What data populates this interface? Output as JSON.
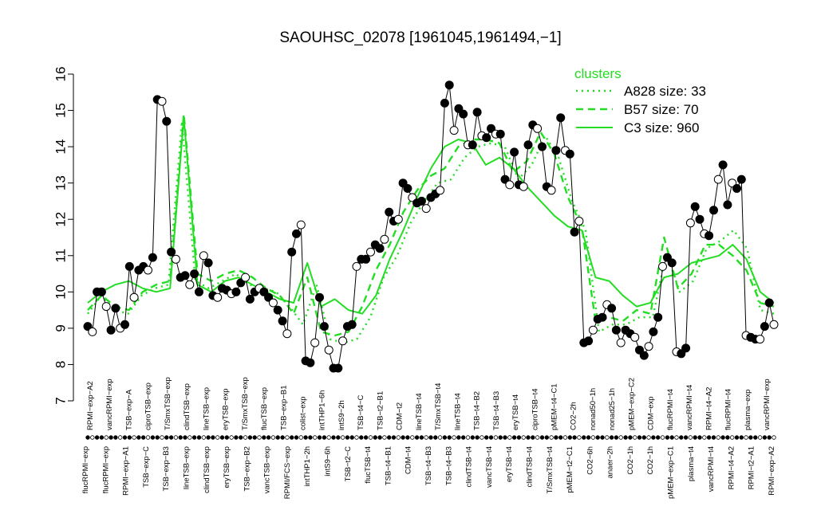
{
  "chart_data": {
    "type": "line",
    "title": "SAOUHSC_02078 [1961045,1961494,−1]",
    "xlabel": "",
    "ylabel": "",
    "ylim": [
      7,
      16
    ],
    "yticks": [
      7,
      8,
      9,
      10,
      11,
      12,
      13,
      14,
      15,
      16
    ],
    "grid": false,
    "legend_position": "top-right",
    "colors": {
      "cluster": "#22dd22",
      "points": "#000000",
      "axis": "#000000"
    },
    "tick_labels_upper": [
      "RPMI−exp−A2",
      "vancRPMI−exp",
      "TSB−exp−A",
      "ciproTSB−exp",
      "T/SmxTSB−exp",
      "clindTSB−exp",
      "lineTSB−exp",
      "eryTSB−exp",
      "T/SmxTSB−exp",
      "flucTSB−exp",
      "TSB−exp−B1",
      "colist−exp",
      "intTHP1−6h",
      "intS9−2h",
      "TSB−t4−C",
      "TSB−t2−B1",
      "CDM−t2",
      "lineTSB−t4",
      "T/SmxTSB−t4",
      "lineTSB−t4",
      "TSB−t4−B2",
      "TSB−t4−B3",
      "eryTSB−t4",
      "ciproTSB−t4",
      "pMEM−t4−C1",
      "CO2−2h",
      "nonad50−1h",
      "nonad25−1h",
      "pMEM−exp−C2",
      "CDM−exp",
      "flucRPMI−t4",
      "vancRPMI−t4",
      "RPMI−t4−A2",
      "flucRPMI−t4",
      "plasma−exp",
      "vancRPMI−exp"
    ],
    "tick_labels_lower": [
      "flucRPMI−exp",
      "flucRPMI−exp",
      "RPMI−exp−A1",
      "TSB−exp−C",
      "TSB−exp−B3",
      "lineTSB−exp",
      "clindTSB−exp",
      "eryTSB−exp",
      "TSB−exp−B2",
      "vancTSB−exp",
      "RPMI/FCS−exp",
      "intTHP1−2h",
      "intS9−6h",
      "TSB−t2−C",
      "flucTSB−t4",
      "TSB−t4−B1",
      "CDM−t4",
      "TSB−t4−B3",
      "TSB−t4−B3",
      "clindTSB−t4",
      "vancTSB−t4",
      "eryTSB−t4",
      "clindTSB−t4",
      "T/SmxTSB−t4",
      "pMEM−t2−C1",
      "CO2−6h",
      "anaer−2h",
      "CO2−1h",
      "CO2−1h",
      "pMEM−exp−C1",
      "plasma−t4",
      "vancRPMI−t4",
      "RPMI−t4−A2",
      "RPMI−t2−A1",
      "RPMI−exp−A2"
    ],
    "series": [
      {
        "name": "A828 size: 33",
        "style": "dotted",
        "values": [
          9.4,
          9.9,
          9.5,
          9.4,
          9.9,
          10.1,
          10.2,
          14.7,
          10.3,
          10.1,
          10.3,
          10.5,
          10.2,
          10.1,
          10.0,
          9.6,
          9.1,
          10.2,
          8.7,
          8.6,
          8.7,
          9.3,
          10.4,
          11.0,
          11.9,
          12.5,
          13.0,
          13.1,
          13.7,
          14.0,
          14.1,
          14.0,
          13.1,
          13.5,
          14.3,
          13.7,
          12.5,
          11.7,
          8.9,
          9.1,
          9.1,
          9.3,
          9.3,
          11.1,
          10.0,
          10.3,
          11.2,
          11.4,
          11.7,
          11.2,
          9.5,
          9.4
        ]
      },
      {
        "name": "B57 size: 70",
        "style": "dashed",
        "values": [
          9.5,
          9.9,
          9.6,
          9.5,
          10.0,
          10.2,
          10.3,
          14.9,
          10.5,
          10.3,
          10.5,
          10.6,
          10.4,
          10.1,
          9.9,
          9.4,
          10.4,
          8.9,
          8.8,
          8.9,
          9.6,
          10.6,
          11.3,
          12.2,
          12.8,
          13.2,
          13.4,
          14.0,
          14.2,
          14.2,
          14.1,
          13.3,
          13.6,
          14.4,
          13.8,
          12.6,
          11.8,
          9.2,
          9.3,
          9.2,
          9.5,
          9.4,
          11.5,
          10.1,
          10.5,
          11.3,
          11.3,
          11.0,
          10.6,
          9.7,
          9.6
        ]
      },
      {
        "name": "C3 size: 960",
        "style": "solid",
        "values": [
          9.7,
          10.0,
          10.2,
          10.3,
          10.1,
          10.0,
          10.1,
          14.8,
          10.2,
          10.0,
          10.3,
          10.4,
          10.2,
          10.0,
          9.8,
          9.7,
          10.8,
          9.6,
          9.8,
          9.5,
          9.4,
          9.9,
          10.9,
          11.7,
          12.6,
          13.4,
          14.0,
          14.2,
          14.1,
          13.5,
          13.7,
          13.4,
          12.9,
          12.5,
          12.1,
          11.8,
          11.7,
          10.4,
          10.3,
          9.9,
          9.6,
          9.7,
          10.4,
          10.5,
          10.8,
          10.9,
          11.0,
          11.3,
          10.9,
          10.0,
          9.7
        ]
      }
    ],
    "samples": [
      9.05,
      8.9,
      10.0,
      10.0,
      9.6,
      8.95,
      9.55,
      9.0,
      9.1,
      10.7,
      9.85,
      10.6,
      10.7,
      10.6,
      10.95,
      15.3,
      15.25,
      14.7,
      11.1,
      10.9,
      10.4,
      10.45,
      10.2,
      10.5,
      10.0,
      11.0,
      10.8,
      9.9,
      9.85,
      10.1,
      10.05,
      9.95,
      10.0,
      10.25,
      10.4,
      9.8,
      10.0,
      10.1,
      10.0,
      9.85,
      9.7,
      9.5,
      9.2,
      8.85,
      11.1,
      11.6,
      11.85,
      8.1,
      8.05,
      8.6,
      9.85,
      9.05,
      8.4,
      7.9,
      7.9,
      8.65,
      9.05,
      9.1,
      10.7,
      10.9,
      10.9,
      11.1,
      11.3,
      11.2,
      11.45,
      12.2,
      11.95,
      12.0,
      13.0,
      12.85,
      12.6,
      12.45,
      12.5,
      12.3,
      12.6,
      12.7,
      12.8,
      15.2,
      15.7,
      14.45,
      15.05,
      14.9,
      14.05,
      14.05,
      14.95,
      14.3,
      14.25,
      14.5,
      14.35,
      14.35,
      13.1,
      12.95,
      13.85,
      12.95,
      12.9,
      14.05,
      14.6,
      14.5,
      14.0,
      12.9,
      12.8,
      13.9,
      14.8,
      13.9,
      13.8,
      11.65,
      11.95,
      8.6,
      8.65,
      8.95,
      9.25,
      9.3,
      9.65,
      9.55,
      8.95,
      8.6,
      8.95,
      8.85,
      8.75,
      8.4,
      8.25,
      8.5,
      8.9,
      9.3,
      10.7,
      10.95,
      10.8,
      8.35,
      8.3,
      8.45,
      11.9,
      12.35,
      12.0,
      11.6,
      11.55,
      12.25,
      13.1,
      13.5,
      12.4,
      13.0,
      12.85,
      13.1,
      8.8,
      8.75,
      8.7,
      8.7,
      9.05,
      9.7,
      9.1
    ]
  },
  "legend": {
    "title": "clusters",
    "entries": [
      {
        "label": "A828 size: 33",
        "style": "dotted"
      },
      {
        "label": "B57 size: 70",
        "style": "dashed"
      },
      {
        "label": "C3 size: 960",
        "style": "solid"
      }
    ]
  }
}
